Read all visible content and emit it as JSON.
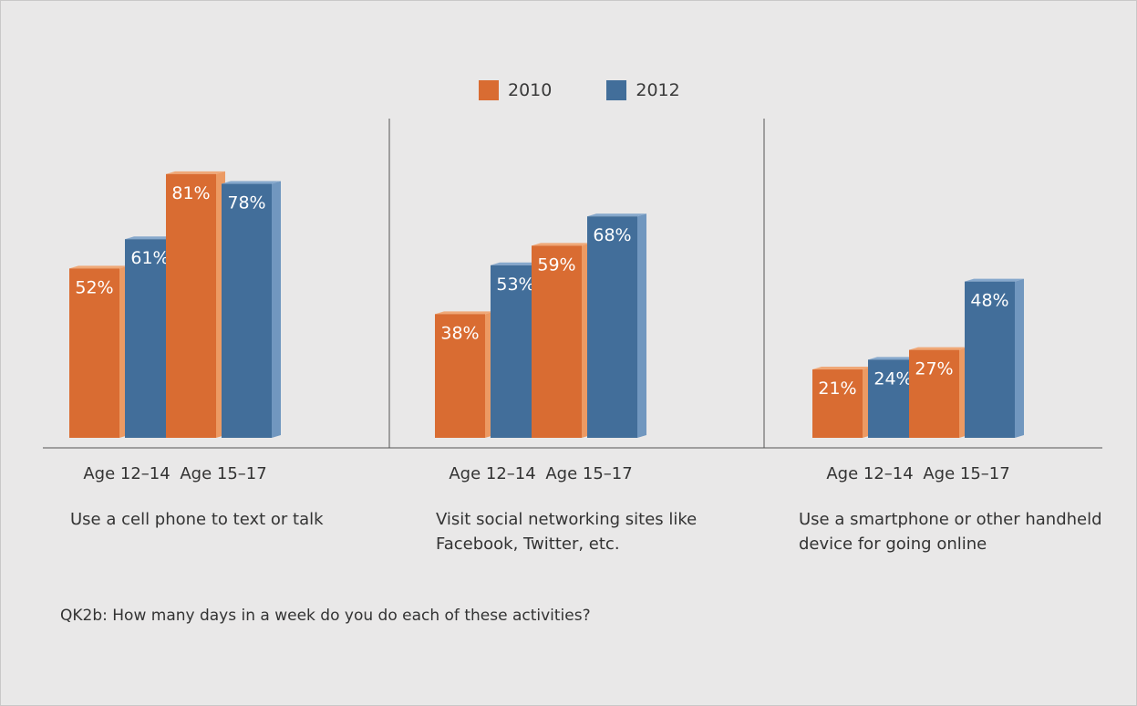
{
  "chart_data": {
    "type": "bar",
    "legend": [
      {
        "name": "2010",
        "color": "#d96c32"
      },
      {
        "name": "2012",
        "color": "#426e9a"
      }
    ],
    "groups": [
      {
        "title": "Use a cell phone to text or talk",
        "categories": [
          "Age 12–14",
          "Age 15–17"
        ],
        "series": [
          {
            "name": "2010",
            "values": [
              52,
              81
            ],
            "labels": [
              "52%",
              "81%"
            ]
          },
          {
            "name": "2012",
            "values": [
              61,
              78
            ],
            "labels": [
              "61%",
              "78%"
            ]
          }
        ]
      },
      {
        "title": "Visit social networking sites like Facebook, Twitter, etc.",
        "categories": [
          "Age 12–14",
          "Age 15–17"
        ],
        "series": [
          {
            "name": "2010",
            "values": [
              38,
              59
            ],
            "labels": [
              "38%",
              "59%"
            ]
          },
          {
            "name": "2012",
            "values": [
              53,
              68
            ],
            "labels": [
              "53%",
              "68%"
            ]
          }
        ]
      },
      {
        "title": "Use a smartphone or other handheld device for going online",
        "categories": [
          "Age 12–14",
          "Age 15–17"
        ],
        "series": [
          {
            "name": "2010",
            "values": [
              21,
              27
            ],
            "labels": [
              "21%",
              "27%"
            ]
          },
          {
            "name": "2012",
            "values": [
              24,
              48
            ],
            "labels": [
              "24%",
              "48%"
            ]
          }
        ]
      }
    ],
    "ylim": [
      0,
      100
    ],
    "grid": false,
    "legend_position": "top-center"
  },
  "footnote": "QK2b: How many days in a week do you do each of these activities?"
}
